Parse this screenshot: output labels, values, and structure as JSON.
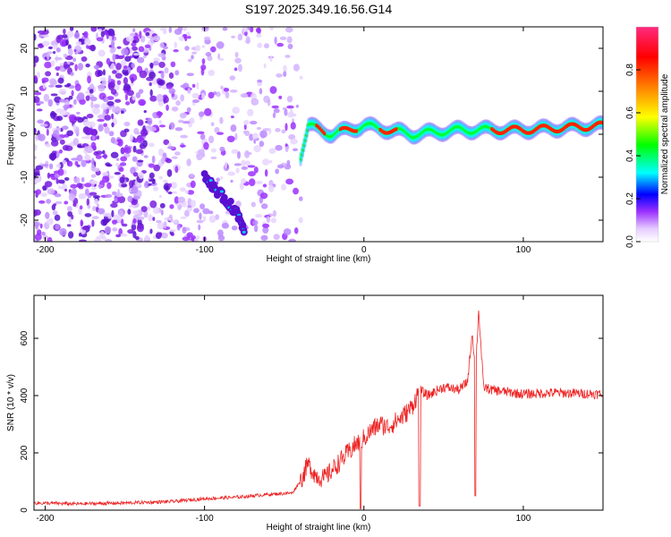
{
  "chart_data": [
    {
      "type": "heatmap",
      "title": "S197.2025.349.16.56.G14",
      "xlabel": "Height of straight line (km)",
      "ylabel": "Frequency (Hz)",
      "xlim": [
        -207,
        150
      ],
      "ylim": [
        -25,
        25
      ],
      "x_ticks": [
        -200,
        -100,
        0,
        100
      ],
      "x_tick_labels": [
        "-200",
        "-100",
        "0",
        "100"
      ],
      "y_ticks": [
        -20,
        -10,
        0,
        10,
        20
      ],
      "y_tick_labels": [
        "-20",
        "-10",
        "0",
        "10",
        "20"
      ],
      "colorbar": {
        "label": "Normalized spectral amplitude",
        "range": [
          0,
          1
        ],
        "ticks": [
          0.0,
          0.2,
          0.4,
          0.6,
          0.8
        ],
        "tick_labels": [
          "0.0",
          "0.2",
          "0.4",
          "0.6",
          "0.8"
        ]
      },
      "features": {
        "noise_region_km": [
          -207,
          -45
        ],
        "ridge_start_km": -40,
        "ridge_frequency_hz": [
          [
            -40,
            -5
          ],
          [
            -35,
            2
          ],
          [
            -20,
            0
          ],
          [
            0,
            2
          ],
          [
            30,
            0
          ],
          [
            60,
            1
          ],
          [
            100,
            1
          ],
          [
            150,
            2
          ]
        ],
        "descending_branch": [
          [
            -100,
            -10
          ],
          [
            -90,
            -14
          ],
          [
            -80,
            -18
          ],
          [
            -75,
            -22
          ]
        ],
        "peak_segments_km": [
          [
            -30,
            -25
          ],
          [
            -15,
            -5
          ],
          [
            10,
            20
          ],
          [
            80,
            150
          ]
        ]
      }
    },
    {
      "type": "line",
      "xlabel": "Height of straight line (km)",
      "ylabel": "SNR (10 * v/v)",
      "xlim": [
        -207,
        150
      ],
      "ylim": [
        0,
        750
      ],
      "x_ticks": [
        -200,
        -100,
        0,
        100
      ],
      "x_tick_labels": [
        "-200",
        "-100",
        "0",
        "100"
      ],
      "y_ticks": [
        0,
        200,
        400,
        600
      ],
      "y_tick_labels": [
        "0",
        "200",
        "400",
        "600"
      ],
      "series": [
        {
          "name": "SNR",
          "color": "#ee2222",
          "x": [
            -207,
            -180,
            -150,
            -120,
            -100,
            -80,
            -60,
            -45,
            -40,
            -35,
            -30,
            -25,
            -20,
            -15,
            -10,
            -5,
            0,
            5,
            10,
            15,
            20,
            25,
            30,
            35,
            40,
            50,
            60,
            65,
            68,
            70,
            72,
            75,
            80,
            100,
            120,
            150
          ],
          "values": [
            25,
            22,
            25,
            30,
            40,
            45,
            55,
            60,
            100,
            160,
            120,
            110,
            140,
            170,
            200,
            230,
            250,
            280,
            300,
            290,
            310,
            330,
            360,
            420,
            400,
            430,
            420,
            450,
            620,
            480,
            700,
            430,
            420,
            405,
            410,
            405
          ],
          "dips": [
            [
              -2,
              5
            ],
            [
              35,
              15
            ],
            [
              70,
              50
            ]
          ]
        }
      ]
    }
  ],
  "colors": {
    "line": "#ee2222",
    "noise": "#8a2be2"
  }
}
